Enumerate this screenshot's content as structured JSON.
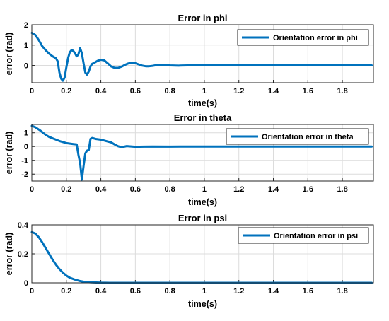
{
  "colors": {
    "series": "#0072bd",
    "axis": "#262626",
    "grid": "#dcdcdc"
  },
  "chart_data": [
    {
      "type": "line",
      "title": "Error in phi",
      "xlabel": "time(s)",
      "ylabel": "error (rad)",
      "xlim": [
        0,
        1.98
      ],
      "ylim": [
        -0.85,
        2
      ],
      "xticks": [
        0,
        0.2,
        0.4,
        0.6,
        0.8,
        1,
        1.2,
        1.4,
        1.6,
        1.8
      ],
      "xtick_labels": [
        "0",
        "0.2",
        "0.4",
        "0.6",
        "0.8",
        "1",
        "1.2",
        "1.4",
        "1.6",
        "1.8"
      ],
      "yticks": [
        0,
        1,
        2
      ],
      "ytick_labels": [
        "0",
        "1",
        "2"
      ],
      "grid": true,
      "legend": "top-right",
      "series": [
        {
          "name": "Orientation error in phi",
          "x": [
            0,
            0.02,
            0.04,
            0.06,
            0.08,
            0.1,
            0.12,
            0.14,
            0.15,
            0.16,
            0.17,
            0.18,
            0.19,
            0.2,
            0.21,
            0.22,
            0.23,
            0.24,
            0.25,
            0.26,
            0.27,
            0.28,
            0.29,
            0.3,
            0.31,
            0.32,
            0.33,
            0.34,
            0.35,
            0.36,
            0.38,
            0.4,
            0.42,
            0.44,
            0.46,
            0.48,
            0.5,
            0.52,
            0.54,
            0.56,
            0.58,
            0.6,
            0.62,
            0.64,
            0.66,
            0.68,
            0.7,
            0.72,
            0.75,
            0.78,
            0.8,
            0.85,
            0.9,
            1.0,
            1.2,
            1.4,
            1.6,
            1.8,
            1.97
          ],
          "y": [
            1.6,
            1.5,
            1.25,
            0.95,
            0.75,
            0.58,
            0.45,
            0.35,
            0.2,
            -0.35,
            -0.65,
            -0.75,
            -0.6,
            -0.1,
            0.35,
            0.65,
            0.75,
            0.72,
            0.6,
            0.45,
            0.55,
            0.85,
            0.6,
            0.1,
            -0.35,
            -0.45,
            -0.3,
            -0.05,
            0.08,
            0.12,
            0.22,
            0.28,
            0.25,
            0.1,
            -0.05,
            -0.12,
            -0.12,
            -0.06,
            0.03,
            0.1,
            0.13,
            0.11,
            0.05,
            -0.01,
            -0.04,
            -0.04,
            -0.02,
            0.01,
            0.03,
            0.02,
            0.0,
            -0.01,
            0.0,
            0.0,
            0.0,
            0.0,
            0.0,
            0.0,
            0.0
          ]
        }
      ]
    },
    {
      "type": "line",
      "title": "Error in theta",
      "xlabel": "time(s)",
      "ylabel": "error (rad)",
      "xlim": [
        0,
        1.98
      ],
      "ylim": [
        -2.5,
        1.6
      ],
      "xticks": [
        0,
        0.2,
        0.4,
        0.6,
        0.8,
        1,
        1.2,
        1.4,
        1.6,
        1.8
      ],
      "xtick_labels": [
        "0",
        "0.2",
        "0.4",
        "0.6",
        "0.8",
        "1",
        "1.2",
        "1.4",
        "1.6",
        "1.8"
      ],
      "yticks": [
        -2,
        -1,
        0,
        1
      ],
      "ytick_labels": [
        "-2",
        "-1",
        "0",
        "1"
      ],
      "grid": true,
      "legend": "top-right",
      "series": [
        {
          "name": "Orientation error in theta",
          "x": [
            0,
            0.02,
            0.05,
            0.08,
            0.1,
            0.13,
            0.16,
            0.2,
            0.24,
            0.26,
            0.27,
            0.28,
            0.29,
            0.3,
            0.31,
            0.32,
            0.33,
            0.34,
            0.35,
            0.37,
            0.4,
            0.43,
            0.46,
            0.48,
            0.5,
            0.52,
            0.55,
            0.6,
            0.65,
            0.7,
            0.8,
            0.9,
            1.0,
            1.2,
            1.4,
            1.6,
            1.8,
            1.97
          ],
          "y": [
            1.5,
            1.4,
            1.15,
            0.85,
            0.7,
            0.55,
            0.4,
            0.25,
            0.18,
            0.15,
            -0.6,
            -1.2,
            -2.4,
            -1.4,
            -0.5,
            -0.3,
            -0.25,
            0.55,
            0.62,
            0.55,
            0.5,
            0.4,
            0.3,
            0.15,
            0.02,
            -0.05,
            0.03,
            -0.02,
            -0.01,
            0.0,
            -0.01,
            0.0,
            0.0,
            0.0,
            0.0,
            0.0,
            0.0,
            0.0
          ]
        }
      ]
    },
    {
      "type": "line",
      "title": "Error in psi",
      "xlabel": "time(s)",
      "ylabel": "error (rad)",
      "xlim": [
        0,
        1.98
      ],
      "ylim": [
        0,
        0.4
      ],
      "xticks": [
        0,
        0.2,
        0.4,
        0.6,
        0.8,
        1,
        1.2,
        1.4,
        1.6,
        1.8
      ],
      "xtick_labels": [
        "0",
        "0.2",
        "0.4",
        "0.6",
        "0.8",
        "1",
        "1.2",
        "1.4",
        "1.6",
        "1.8"
      ],
      "yticks": [
        0,
        0.2,
        0.4
      ],
      "ytick_labels": [
        "0",
        "0.2",
        "0.4"
      ],
      "grid": true,
      "legend": "top-right",
      "series": [
        {
          "name": "Orientation error in psi",
          "x": [
            0,
            0.02,
            0.04,
            0.06,
            0.08,
            0.1,
            0.12,
            0.14,
            0.16,
            0.18,
            0.2,
            0.22,
            0.25,
            0.28,
            0.3,
            0.33,
            0.36,
            0.4,
            0.45,
            0.5,
            0.6,
            0.8,
            1.0,
            1.2,
            1.4,
            1.6,
            1.8,
            1.97
          ],
          "y": [
            0.35,
            0.34,
            0.315,
            0.28,
            0.24,
            0.2,
            0.16,
            0.125,
            0.095,
            0.07,
            0.05,
            0.035,
            0.022,
            0.012,
            0.008,
            0.005,
            0.003,
            0.001,
            0.0,
            0.0,
            0.0,
            0.0,
            0.0,
            0.0,
            0.0,
            0.0,
            0.0,
            0.0
          ]
        }
      ]
    }
  ]
}
